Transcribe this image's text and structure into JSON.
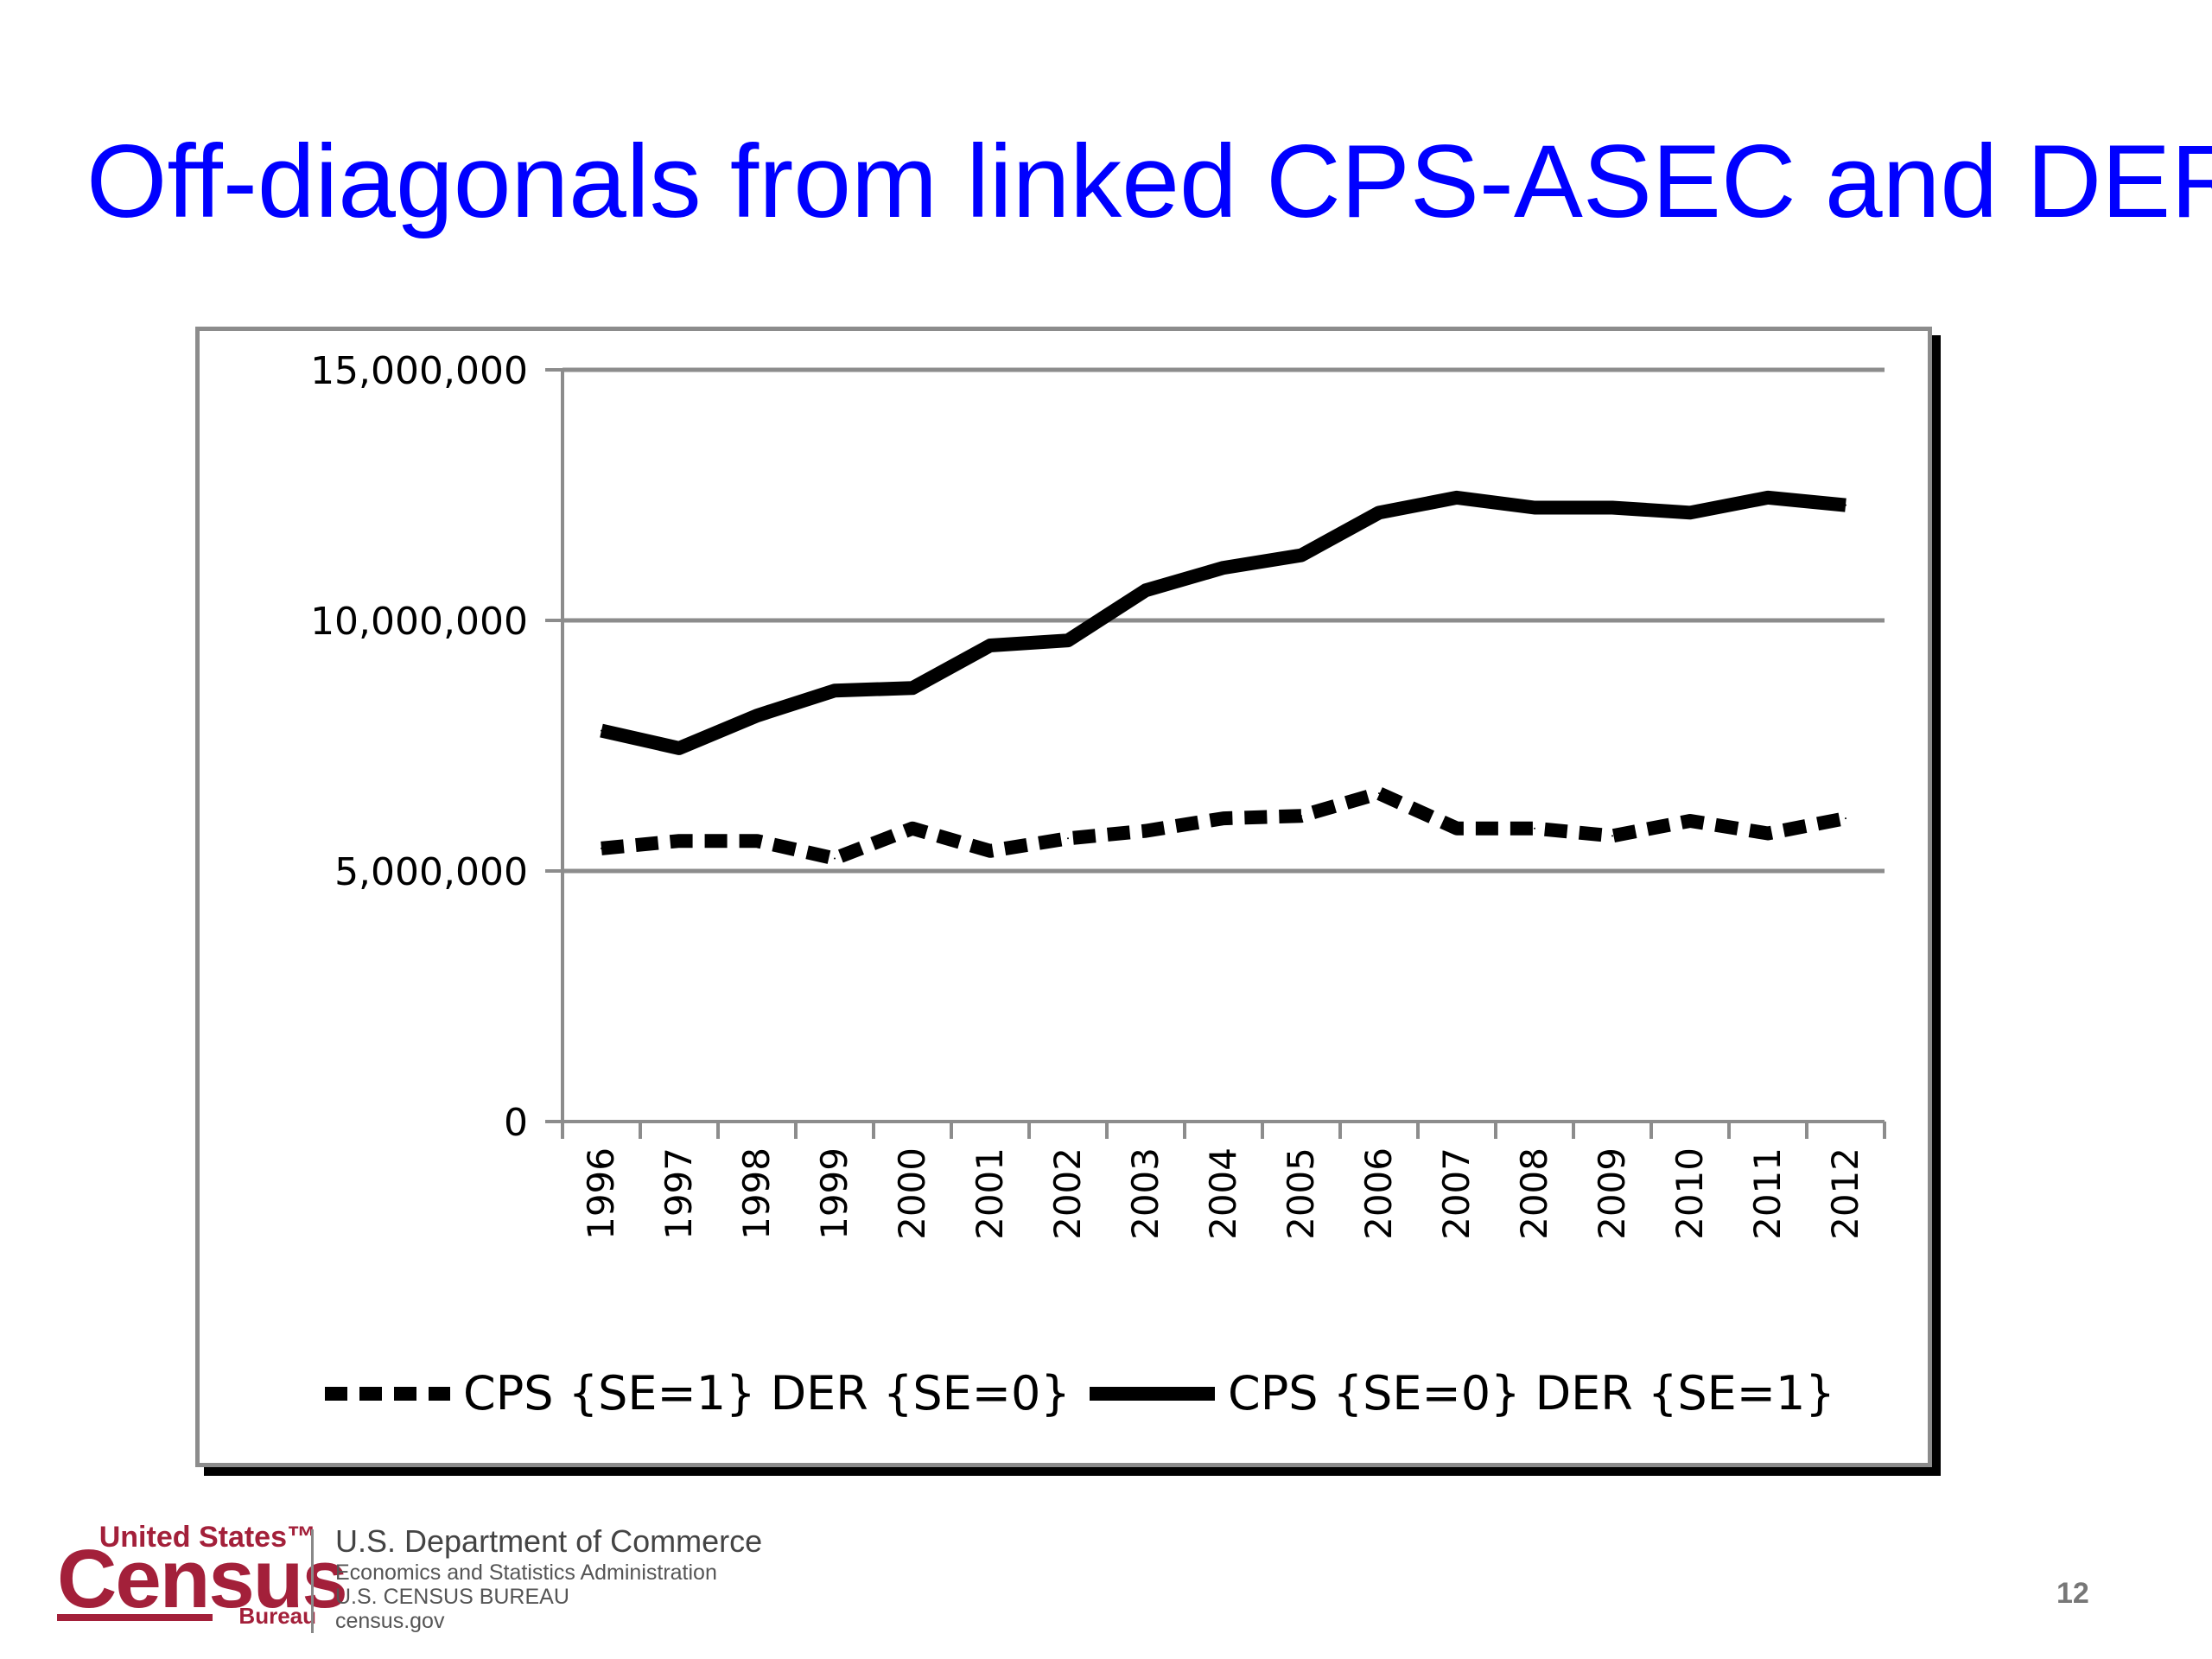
{
  "slide": {
    "title": "Off-diagonals from linked CPS-ASEC and DER",
    "page_number": "12"
  },
  "footer": {
    "logo_top": "United States™",
    "logo_main": "Census",
    "logo_bottom": "Bureau",
    "dept": "U.S. Department of Commerce",
    "line1": "Economics and Statistics Administration",
    "line2": "U.S. CENSUS BUREAU",
    "line3": "census.gov"
  },
  "colors": {
    "title": "#0000ff",
    "census_red": "#a3203a",
    "series": "#000000",
    "grid": "#8c8c8c"
  },
  "chart_data": {
    "type": "line",
    "x": [
      "1996",
      "1997",
      "1998",
      "1999",
      "2000",
      "2001",
      "2002",
      "2003",
      "2004",
      "2005",
      "2006",
      "2007",
      "2008",
      "2009",
      "2010",
      "2011",
      "2012"
    ],
    "ylim": [
      0,
      15000000
    ],
    "yticks": [
      0,
      5000000,
      10000000,
      15000000
    ],
    "ytick_labels": [
      "0",
      "5,000,000",
      "10,000,000",
      "15,000,000"
    ],
    "grid": "horizontal",
    "legend_position": "bottom",
    "series": [
      {
        "name": "CPS {SE=1} DER {SE=0}",
        "style": "dashed",
        "values": [
          5450000,
          5600000,
          5600000,
          5250000,
          5850000,
          5400000,
          5650000,
          5800000,
          6050000,
          6100000,
          6550000,
          5850000,
          5850000,
          5700000,
          6000000,
          5750000,
          6050000
        ]
      },
      {
        "name": "CPS {SE=0} DER {SE=1}",
        "style": "solid",
        "values": [
          7800000,
          7450000,
          8100000,
          8600000,
          8650000,
          9500000,
          9600000,
          10600000,
          11050000,
          11300000,
          12150000,
          12450000,
          12250000,
          12250000,
          12150000,
          12450000,
          12300000
        ]
      }
    ]
  }
}
